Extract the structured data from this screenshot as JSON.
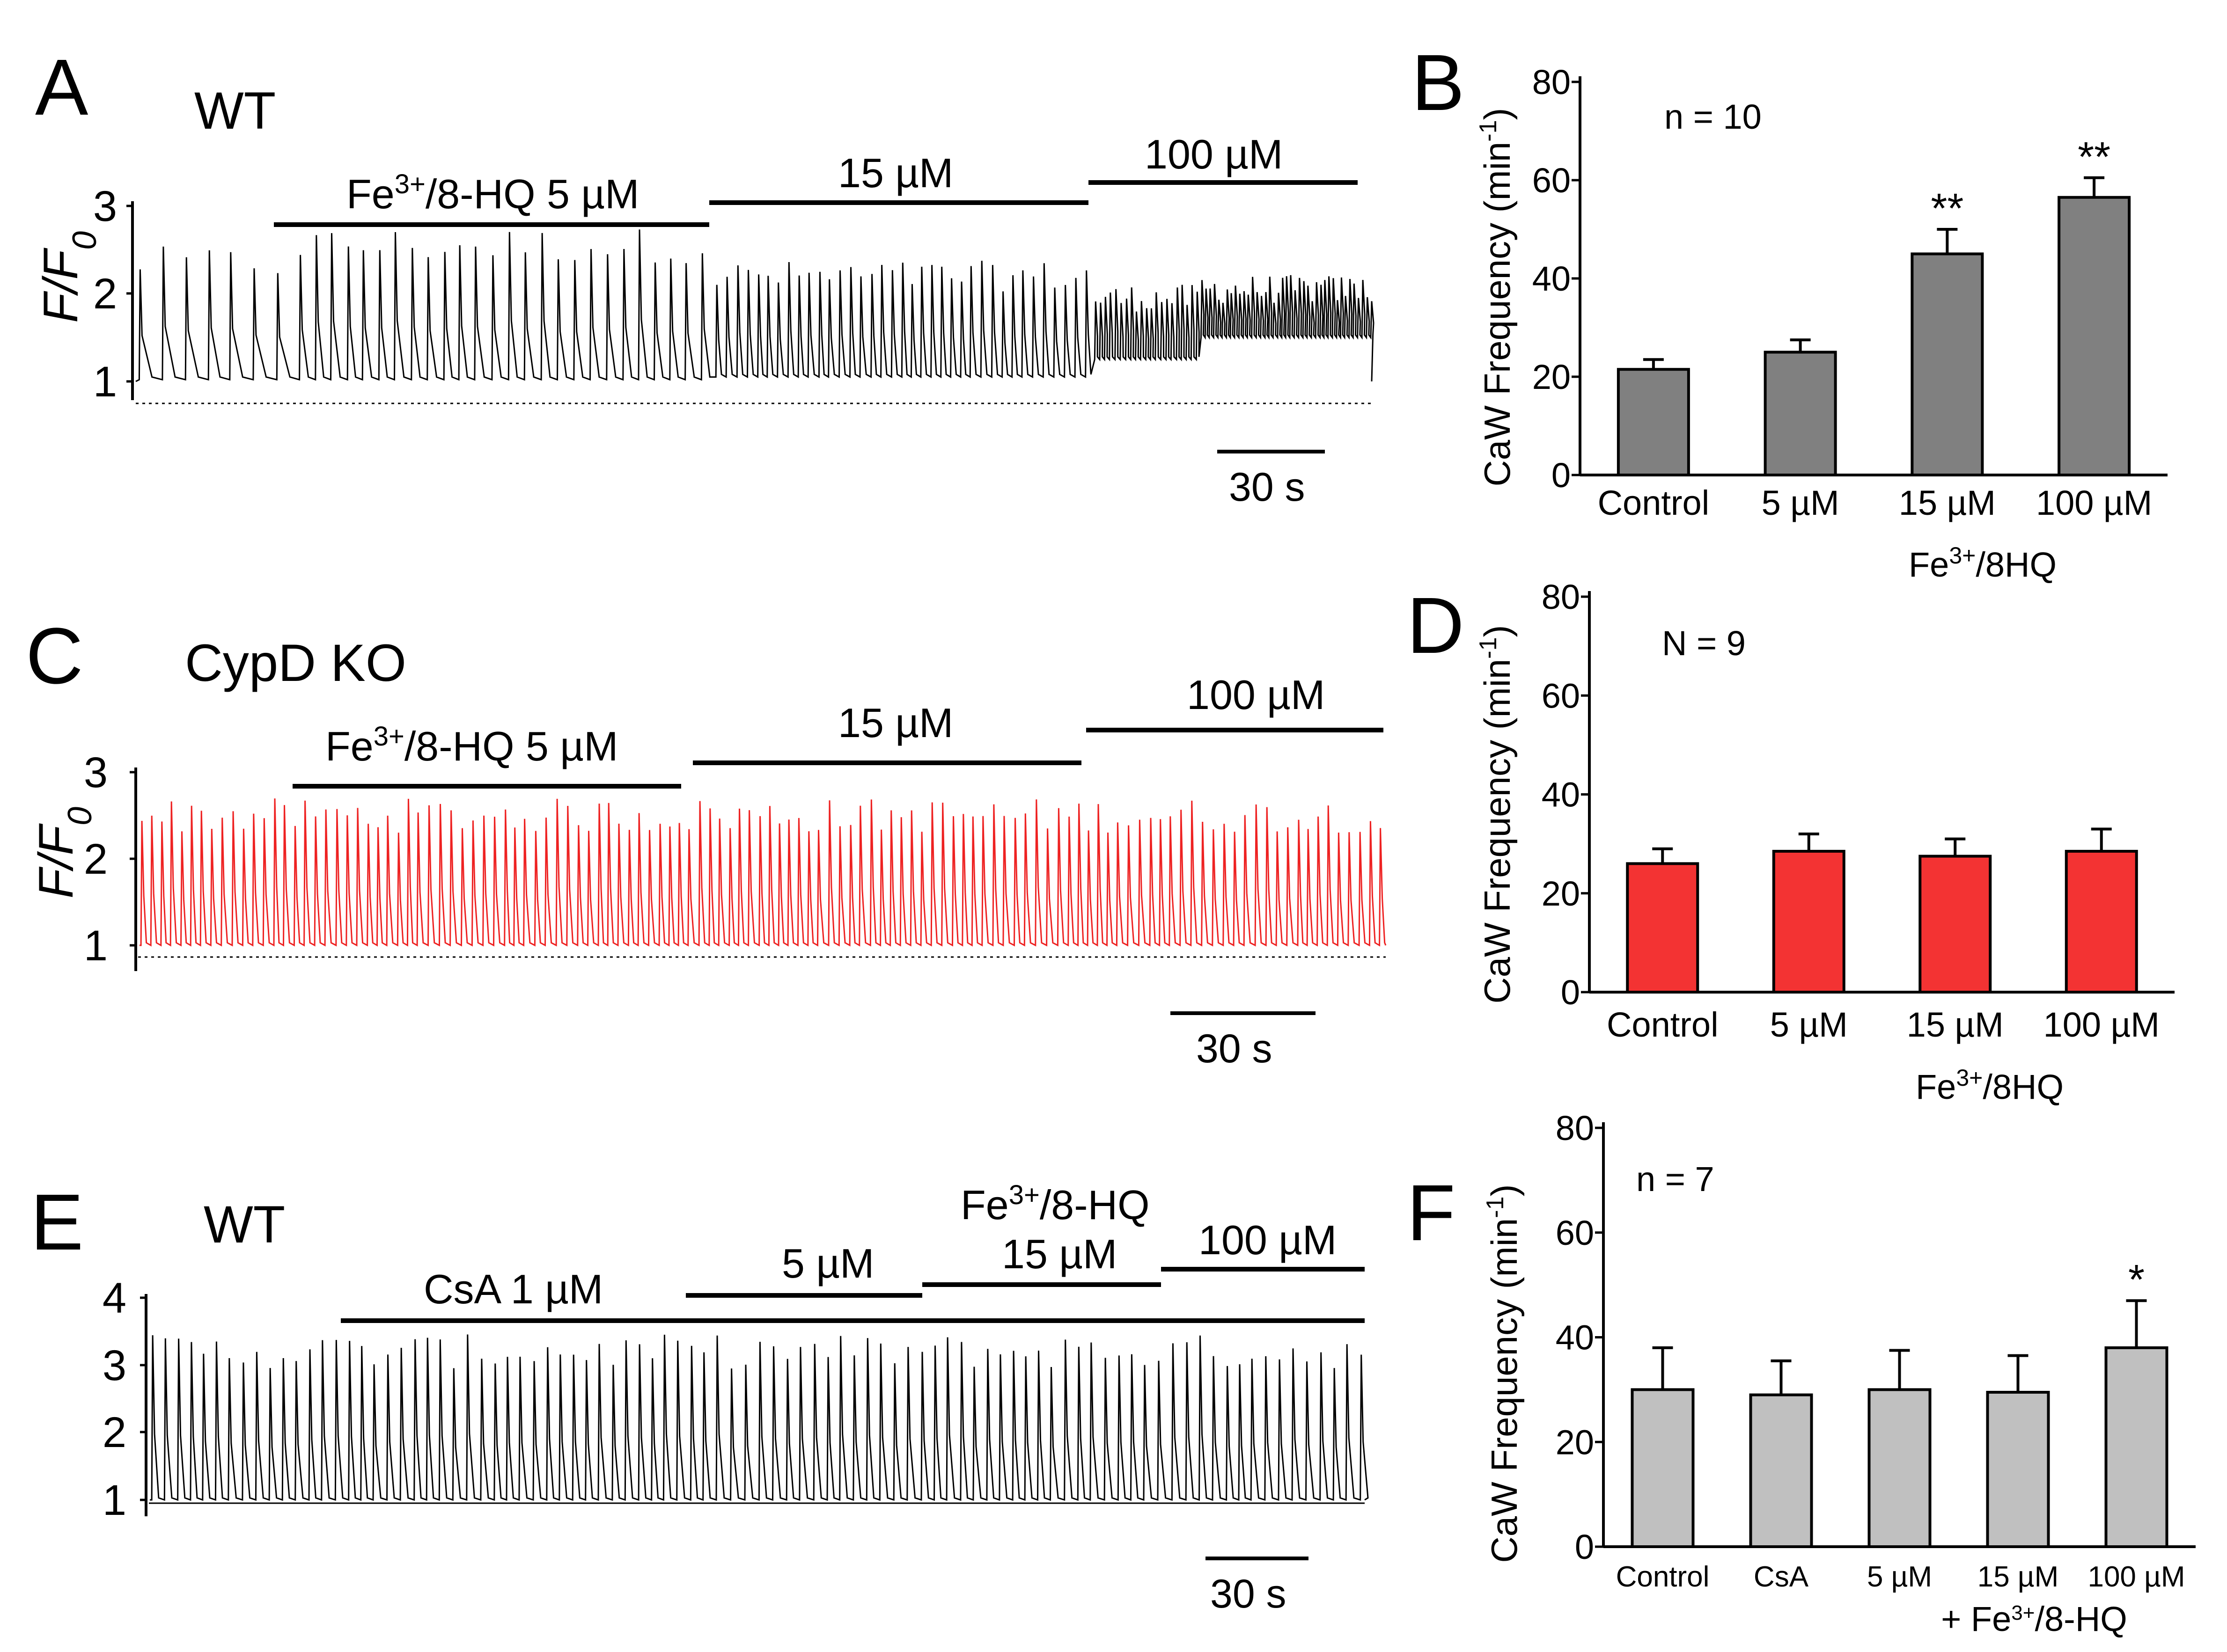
{
  "panels": {
    "A": {
      "letter": "A",
      "title": "WT",
      "y_label": "F/F",
      "y_label_sub": "0",
      "y_ticks": [
        "1",
        "2",
        "3"
      ],
      "scale_bar": "30 s",
      "drugs": [
        {
          "pre": "Fe",
          "sup": "3+",
          "post": "/8-HQ 5 µM"
        },
        {
          "pre": "15 µM",
          "sup": "",
          "post": ""
        },
        {
          "pre": "100 µM",
          "sup": "",
          "post": ""
        }
      ]
    },
    "C": {
      "letter": "C",
      "title": "CypD KO",
      "y_label": "F/F",
      "y_label_sub": "0",
      "y_ticks": [
        "1",
        "2",
        "3"
      ],
      "scale_bar": "30 s",
      "drugs": [
        {
          "pre": "Fe",
          "sup": "3+",
          "post": "/8-HQ 5 µM"
        },
        {
          "pre": "15 µM",
          "sup": "",
          "post": ""
        },
        {
          "pre": "100 µM",
          "sup": "",
          "post": ""
        }
      ]
    },
    "E": {
      "letter": "E",
      "title": "WT",
      "y_ticks": [
        "1",
        "2",
        "3",
        "4"
      ],
      "scale_bar": "30 s",
      "drugs": [
        {
          "pre": "CsA 1 µM",
          "sup": "",
          "post": ""
        },
        {
          "pre": "5 µM",
          "sup": "",
          "post": ""
        },
        {
          "pre": "15 µM",
          "sup": "",
          "post": ""
        },
        {
          "pre": "100 µM",
          "sup": "",
          "post": ""
        }
      ],
      "drug_header": {
        "pre": "Fe",
        "sup": "3+",
        "post": "/8-HQ"
      }
    },
    "B": {
      "letter": "B",
      "n_label": "n = 10",
      "y_label": "CaW Frequency (min",
      "y_label_sup": "-1",
      "y_label_end": ")",
      "group_label": {
        "pre": "Fe",
        "sup": "3+",
        "post": "/8HQ"
      }
    },
    "D": {
      "letter": "D",
      "n_label": "N = 9",
      "y_label": "CaW Frequency (min",
      "y_label_sup": "-1",
      "y_label_end": ")",
      "group_label": {
        "pre": "Fe",
        "sup": "3+",
        "post": "/8HQ"
      }
    },
    "F": {
      "letter": "F",
      "n_label": "n = 7",
      "y_label": "CaW Frequency (min",
      "y_label_sup": "-1",
      "y_label_end": ")",
      "group_label": {
        "pre": "+ Fe",
        "sup": "3+",
        "post": "/8-HQ"
      }
    }
  },
  "chart_data": [
    {
      "id": "B",
      "type": "bar",
      "categories": [
        "Control",
        "5 µM",
        "15 µM",
        "100 µM"
      ],
      "values": [
        21.5,
        25,
        45,
        56.5
      ],
      "errors": [
        2,
        2.5,
        5,
        4
      ],
      "annotations": [
        "",
        "",
        "**",
        "**"
      ],
      "ylim": [
        0,
        80
      ],
      "yticks": [
        0,
        20,
        40,
        60,
        80
      ],
      "color": "#808080"
    },
    {
      "id": "D",
      "type": "bar",
      "categories": [
        "Control",
        "5 µM",
        "15 µM",
        "100 µM"
      ],
      "values": [
        26,
        28.5,
        27.5,
        28.5
      ],
      "errors": [
        3,
        3.5,
        3.5,
        4.5
      ],
      "annotations": [
        "",
        "",
        "",
        ""
      ],
      "ylim": [
        0,
        80
      ],
      "yticks": [
        0,
        20,
        40,
        60,
        80
      ],
      "color": "#f33333"
    },
    {
      "id": "F",
      "type": "bar",
      "categories": [
        "Control",
        "CsA",
        "5 µM",
        "15 µM",
        "100 µM"
      ],
      "values": [
        30,
        29,
        30,
        29.5,
        38
      ],
      "errors": [
        8,
        6.5,
        7.5,
        7,
        9
      ],
      "annotations": [
        "",
        "",
        "",
        "",
        "*"
      ],
      "ylim": [
        0,
        80
      ],
      "yticks": [
        0,
        20,
        40,
        60,
        80
      ],
      "color": "#c0c0c0"
    },
    {
      "id": "A",
      "type": "line",
      "series": [
        {
          "color": "#000000"
        }
      ],
      "ylim": [
        0.8,
        3
      ],
      "yticks": [
        1,
        2,
        3
      ]
    },
    {
      "id": "C",
      "type": "line",
      "series": [
        {
          "color": "#ee2222"
        }
      ],
      "ylim": [
        0.8,
        3
      ],
      "yticks": [
        1,
        2,
        3
      ]
    },
    {
      "id": "E",
      "type": "line",
      "series": [
        {
          "color": "#000000"
        }
      ],
      "ylim": [
        0.8,
        4
      ],
      "yticks": [
        1,
        2,
        3,
        4
      ]
    }
  ]
}
